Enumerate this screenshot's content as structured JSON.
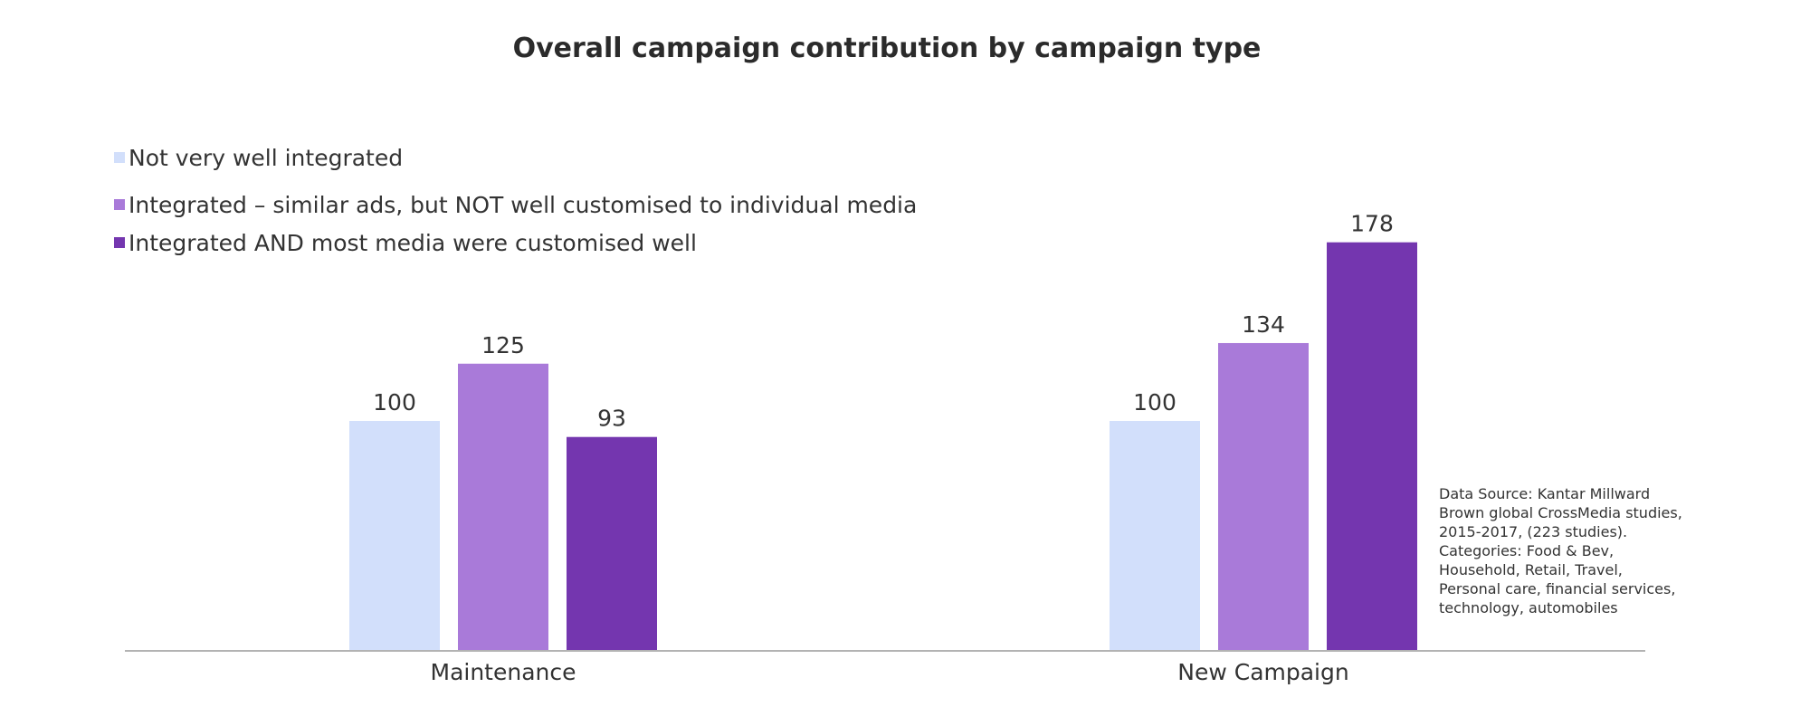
{
  "chart_data": {
    "type": "bar",
    "title": "Overall campaign contribution by campaign type",
    "categories": [
      "Maintenance",
      "New Campaign"
    ],
    "series": [
      {
        "name": "Not very well integrated",
        "values": [
          100,
          100
        ],
        "color": "#d2dffb"
      },
      {
        "name": "Integrated – similar ads, but NOT well customised to individual media",
        "values": [
          125,
          134
        ],
        "color": "#a97ad9"
      },
      {
        "name": "Integrated AND most media were customised well",
        "values": [
          93,
          178
        ],
        "color": "#7436af"
      }
    ],
    "xlabel": "",
    "ylabel": "",
    "ylim": [
      0,
      200
    ],
    "grid": false,
    "legend_position": "top-left"
  },
  "source_note": [
    "Data Source: Kantar Millward",
    "Brown global CrossMedia studies,",
    "2015-2017, (223 studies).",
    "Categories: Food & Bev,",
    "Household, Retail, Travel,",
    "Personal care, financial services,",
    "technology, automobiles"
  ]
}
